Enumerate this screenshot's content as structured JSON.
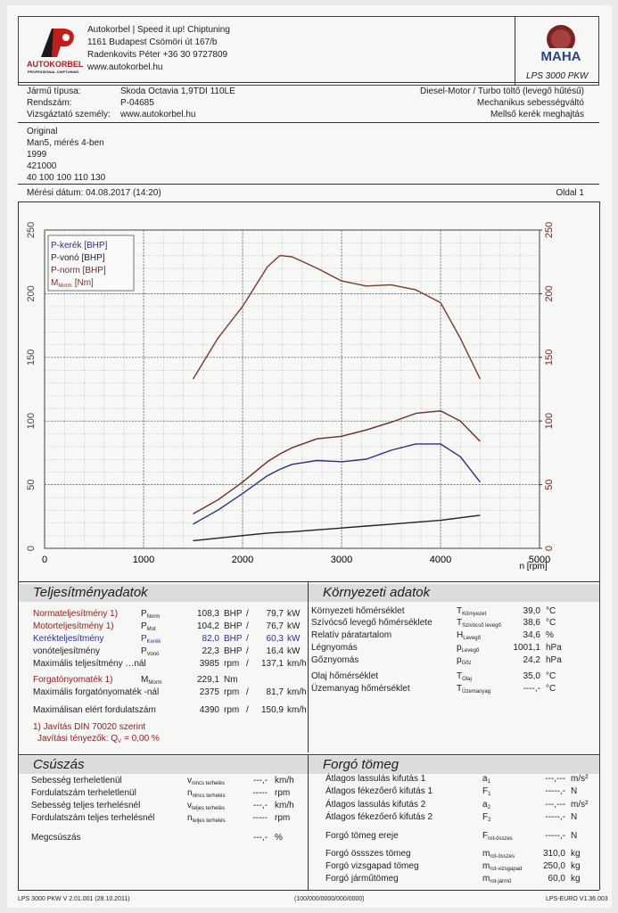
{
  "header": {
    "company_lines": [
      "Autokorbel | Speed it up! Chiptuning",
      "1161 Budapest Csömöri út 167/b",
      "Radenkovits Péter +36 30 9727809",
      "www.autokorbel.hu"
    ],
    "logo_name": "AUTOKORBEL",
    "logo_tagline": "PROFESSIONAL CHIPTUNING",
    "maha": "MAHA",
    "product": "LPS 3000 PKW"
  },
  "vehicle": {
    "rows": [
      [
        "Jármű típusa:",
        "Skoda Octavia 1,9TDI 110LE"
      ],
      [
        "Rendszám:",
        "P-04685"
      ],
      [
        "Vizsgáztató személy:",
        "www.autokorbel.hu"
      ]
    ],
    "specs": [
      "Diesel-Motor / Turbo töltő (levegő hűtésű)",
      "Mechanikus sebességváltó",
      "Mellső kerék meghajtás"
    ]
  },
  "notes": [
    "Original",
    "Man5, mérés 4-ben",
    "1999",
    "421000",
    "40 100 100 110 130"
  ],
  "date": "Mérési dátum: 04.08.2017 (14:20)",
  "page": "Oldal 1",
  "chart_data": {
    "type": "line",
    "x_label": "n [rpm]",
    "x": [
      1500,
      1750,
      2000,
      2250,
      2375,
      2500,
      2750,
      3000,
      3250,
      3500,
      3750,
      4000,
      4200,
      4400
    ],
    "series": [
      {
        "name": "P-kerék [BHP]",
        "color": "#2c2f8a",
        "values": [
          19,
          30,
          43,
          57,
          62,
          66,
          69,
          68,
          70,
          77,
          82,
          82,
          72,
          52
        ]
      },
      {
        "name": "P-vonó [BHP]",
        "color": "#222222",
        "values": [
          6,
          8,
          10,
          12,
          12.5,
          13,
          14.5,
          16,
          17.5,
          19,
          20.5,
          22,
          24,
          26
        ]
      },
      {
        "name": "P-norm [BHP]",
        "color": "#6e2a2a",
        "values": [
          27,
          38,
          52,
          68,
          74,
          79,
          86,
          88,
          93,
          99,
          106,
          108,
          100,
          84
        ]
      },
      {
        "name": "M",
        "name_sub": "Morm",
        "name_unit": "[Nm]",
        "color": "#7a3b2a",
        "axis": "y2",
        "values": [
          133,
          165,
          190,
          221,
          230,
          229,
          220,
          210,
          206,
          207,
          203,
          193,
          165,
          133
        ]
      }
    ],
    "xlim": [
      0,
      5000
    ],
    "xticks": [
      0,
      1000,
      2000,
      3000,
      4000,
      5000
    ],
    "ylim": [
      0,
      250
    ],
    "yticks": [
      0,
      50,
      100,
      150,
      200,
      250
    ],
    "y2lim": [
      0,
      250
    ],
    "y2ticks": [
      0,
      50,
      100,
      150,
      200,
      250
    ],
    "grid": true,
    "legend": "upper left"
  },
  "performance": {
    "title": "Teljesítményadatok",
    "rows": [
      {
        "label": "Normateljesítmény 1)",
        "sym": {
          "base": "P",
          "sub": "Norm"
        },
        "value": "108,3",
        "unit": "BHP",
        "sep": "/",
        "value2": "79,7",
        "unit2": "kW",
        "label_color": "#8e1c1c"
      },
      {
        "label": "Motorteljesítmény 1)",
        "sym": {
          "base": "P",
          "sub": "Mot"
        },
        "value": "104,2",
        "unit": "BHP",
        "sep": "/",
        "value2": "76,7",
        "unit2": "kW",
        "label_color": "#8e1c1c"
      },
      {
        "label": "Kerékteljesítmény",
        "sym": {
          "base": "P",
          "sub": "Kerék"
        },
        "value": "82,0",
        "unit": "BHP",
        "sep": "/",
        "value2": "60,3",
        "unit2": "kW",
        "color": "#2c2f9a"
      },
      {
        "label": "vonóteljesítmény",
        "sym": {
          "base": "P",
          "sub": "Vonó"
        },
        "value": "22,3",
        "unit": "BHP",
        "sep": "/",
        "value2": "16,4",
        "unit2": "kW"
      },
      {
        "label": "Maximális teljesítmény …nál",
        "value": "3985",
        "unit": "rpm",
        "sep": "/",
        "value2": "137,1",
        "unit2": "km/h"
      },
      {
        "label": "Forgatónyomaték 1)",
        "sym": {
          "base": "M",
          "sub": "Morm"
        },
        "value": "229,1",
        "unit": "Nm",
        "label_color": "#8e1c1c"
      },
      {
        "label": "Maximális forgatónyomaték -nál",
        "value": "2375",
        "unit": "rpm",
        "sep": "/",
        "value2": "81,7",
        "unit2": "km/h"
      },
      {
        "label": "Maximálisan elért fordulatszám",
        "value": "4390",
        "unit": "rpm",
        "sep": "/",
        "value2": "150,9",
        "unit2": "km/h"
      }
    ],
    "footnote": "1) Javítás DIN 70020 szerint",
    "factor": {
      "label": "Javítási tényezők: Q",
      "sub": "V",
      "value": "= 0,00 %"
    }
  },
  "environment": {
    "title": "Környezeti adatok",
    "rows": [
      {
        "label": "Környezeti hőmérséklet",
        "sym": {
          "base": "T",
          "sub": "Környezet"
        },
        "value": "39,0",
        "unit": "°C"
      },
      {
        "label": "Szívócső levegő hőmérséklete",
        "sym": {
          "base": "T",
          "sub": "Szívócső levegő"
        },
        "value": "38,6",
        "unit": "°C"
      },
      {
        "label": "Relatív páratartalom",
        "sym": {
          "base": "H",
          "sub": "Levegő"
        },
        "value": "34,6",
        "unit": "%"
      },
      {
        "label": "Légnyomás",
        "sym": {
          "base": "p",
          "sub": "Levegő"
        },
        "value": "1001,1",
        "unit": "hPa"
      },
      {
        "label": "Gőznyomás",
        "sym": {
          "base": "p",
          "sub": "Gőz"
        },
        "value": "24,2",
        "unit": "hPa"
      },
      {
        "label": "Olaj hőmérséklet",
        "sym": {
          "base": "T",
          "sub": "Olaj"
        },
        "value": "35,0",
        "unit": "°C"
      },
      {
        "label": "Üzemanyag hőmérséklet",
        "sym": {
          "base": "T",
          "sub": "Üzemanyag"
        },
        "value": "----,-",
        "unit": "°C"
      }
    ]
  },
  "slip": {
    "title": "Csúszás",
    "rows": [
      {
        "label": "Sebesség terheletlenül",
        "sym": {
          "base": "v",
          "sub": "nincs terhelés"
        },
        "value": "---,-",
        "unit": "km/h"
      },
      {
        "label": "Fordulatszám terheletlenül",
        "sym": {
          "base": "n",
          "sub": "nincs terhelés"
        },
        "value": "-----",
        "unit": "rpm"
      },
      {
        "label": "Sebesség teljes terhelésnél",
        "sym": {
          "base": "v",
          "sub": "teljes terhelés"
        },
        "value": "---,-",
        "unit": "km/h"
      },
      {
        "label": "Fordulatszám teljes terhelésnél",
        "sym": {
          "base": "n",
          "sub": "teljes terhelés"
        },
        "value": "-----",
        "unit": "rpm"
      },
      {
        "label": "Megcsúszás",
        "value": "---,-",
        "unit": "%"
      }
    ]
  },
  "rotating_mass": {
    "title": "Forgó tömeg",
    "rows": [
      {
        "label": "Átlagos lassulás kifutás 1",
        "sym": {
          "base": "a",
          "sub": "1"
        },
        "value": "---,---",
        "unit": "m/s²"
      },
      {
        "label": "Átlagos fékezőerő kifutás 1",
        "sym": {
          "base": "F",
          "sub": "1"
        },
        "value": "-----,-",
        "unit": "N"
      },
      {
        "label": "Átlagos lassulás kifutás 2",
        "sym": {
          "base": "a",
          "sub": "2"
        },
        "value": "---,---",
        "unit": "m/s²"
      },
      {
        "label": "Átlagos fékezőerő kifutás 2",
        "sym": {
          "base": "F",
          "sub": "2"
        },
        "value": "-----,-",
        "unit": "N"
      },
      {
        "label": "Forgó tömeg ereje",
        "sym": {
          "base": "F",
          "sub": "rot-összes"
        },
        "value": "-----,-",
        "unit": "N"
      },
      {
        "label": "Forgó össszes tömeg",
        "sym": {
          "base": "m",
          "sub": "rot-összes"
        },
        "value": "310,0",
        "unit": "kg"
      },
      {
        "label": "Forgó vizsgapad tömeg",
        "sym": {
          "base": "m",
          "sub": "rot-vizsgapad"
        },
        "value": "250,0",
        "unit": "kg"
      },
      {
        "label": "Forgó járműtömeg",
        "sym": {
          "base": "m",
          "sub": "rot-jármű"
        },
        "value": "60,0",
        "unit": "kg"
      }
    ]
  },
  "footer": {
    "left": "LPS 3000 PKW V 2.01.001 (28.10.2011)",
    "center": "(100/000/0000/000/0000)",
    "right": "LPS-EURO V1.36.003"
  }
}
